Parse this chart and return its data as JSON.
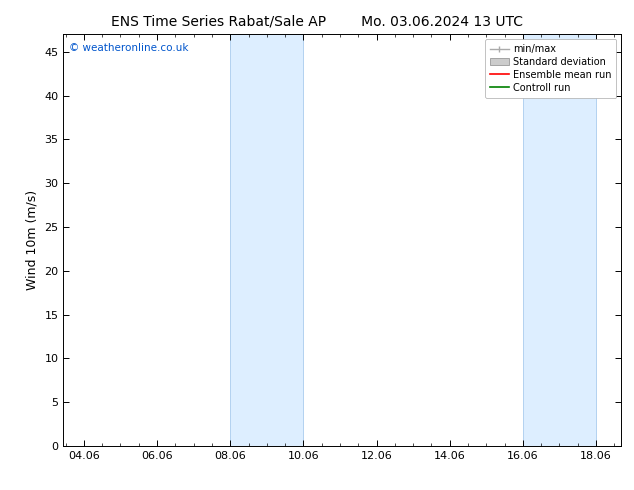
{
  "title_left": "ENS Time Series Rabat/Sale AP",
  "title_right": "Mo. 03.06.2024 13 UTC",
  "ylabel": "Wind 10m (m/s)",
  "watermark": "© weatheronline.co.uk",
  "watermark_color": "#0055cc",
  "xlim_left": 3.5,
  "xlim_right": 18.75,
  "ylim_bottom": 0,
  "ylim_top": 47,
  "yticks": [
    0,
    5,
    10,
    15,
    20,
    25,
    30,
    35,
    40,
    45
  ],
  "xticks": [
    4.06,
    6.06,
    8.06,
    10.06,
    12.06,
    14.06,
    16.06,
    18.06
  ],
  "xticklabels": [
    "04.06",
    "06.06",
    "08.06",
    "10.06",
    "12.06",
    "14.06",
    "16.06",
    "18.06"
  ],
  "shaded_regions": [
    {
      "xmin": 8.06,
      "xmax": 10.06
    },
    {
      "xmin": 16.06,
      "xmax": 18.06
    }
  ],
  "shaded_color": "#ddeeff",
  "shaded_edgecolor": "#aaccee",
  "background_color": "#ffffff",
  "legend_labels": [
    "min/max",
    "Standard deviation",
    "Ensemble mean run",
    "Controll run"
  ],
  "legend_colors": [
    "#aaaaaa",
    "#cccccc",
    "#ff0000",
    "#008000"
  ],
  "tick_fontsize": 8,
  "label_fontsize": 9,
  "title_fontsize": 10
}
